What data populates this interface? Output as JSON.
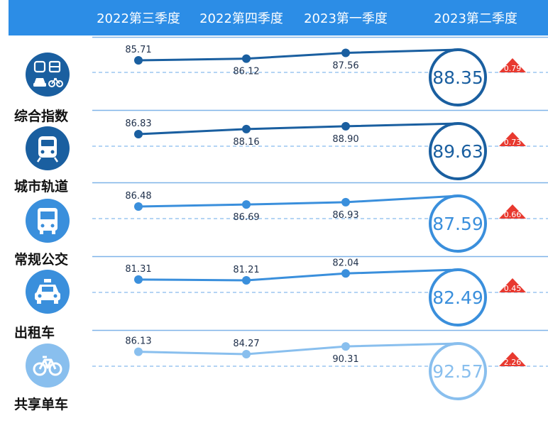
{
  "header": {
    "columns": [
      "2022第三季度",
      "2022第四季度",
      "2023第一季度",
      "2023第二季度"
    ]
  },
  "chart_data": {
    "type": "line",
    "categories": [
      "2022第三季度",
      "2022第四季度",
      "2023第一季度",
      "2023第二季度"
    ],
    "series": [
      {
        "name": "综合指数",
        "icon": "transit-combined-icon",
        "color": "#1a5fa0",
        "values": [
          85.71,
          86.12,
          87.56,
          88.35
        ],
        "change": "0.79"
      },
      {
        "name": "城市轨道",
        "icon": "metro-train-icon",
        "color": "#1a5fa0",
        "values": [
          86.83,
          88.16,
          88.9,
          89.63
        ],
        "change": "0.73"
      },
      {
        "name": "常规公交",
        "icon": "bus-icon",
        "color": "#3a8fdc",
        "values": [
          86.48,
          86.69,
          86.93,
          87.59
        ],
        "change": "0.66"
      },
      {
        "name": "出租车",
        "icon": "taxi-icon",
        "color": "#3a8fdc",
        "values": [
          81.31,
          81.21,
          82.04,
          82.49
        ],
        "change": "0.45"
      },
      {
        "name": "共享单车",
        "icon": "bicycle-icon",
        "color": "#89bfee",
        "values": [
          86.13,
          84.27,
          90.31,
          92.57
        ],
        "change": "2.26"
      }
    ],
    "change_color": "#e8392f"
  }
}
